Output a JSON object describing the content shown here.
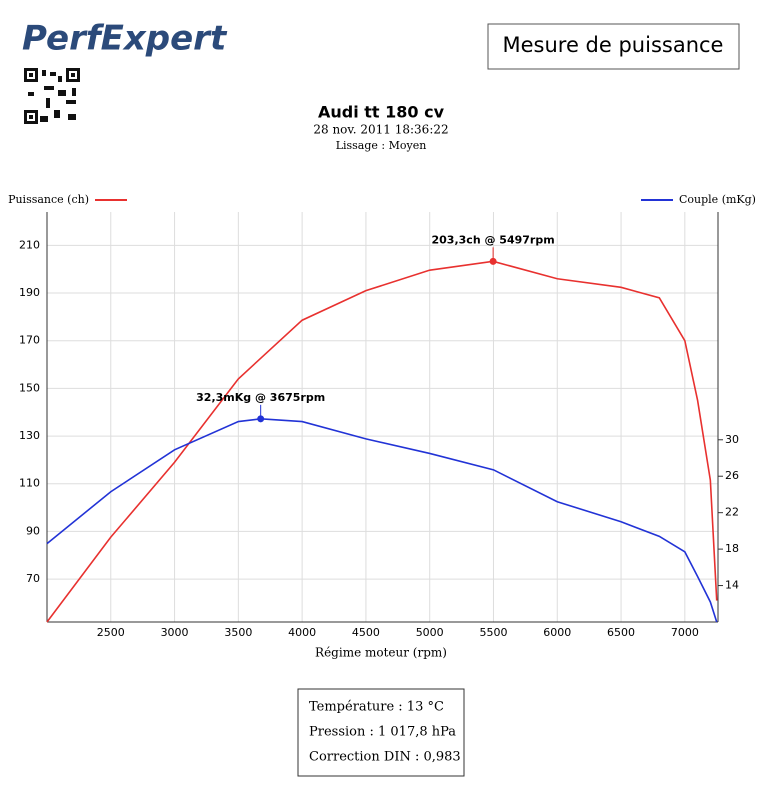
{
  "header": {
    "logo": "PerfExpert",
    "heading": "Mesure de puissance"
  },
  "chart_data": {
    "type": "line",
    "title": "Audi tt 180 cv",
    "subtitle": "28 nov. 2011 18:36:22",
    "smoothing": "Lissage : Moyen",
    "x_label": "Régime moteur (rpm)",
    "xlim": [
      2000,
      7260
    ],
    "xticks": [
      2500,
      3000,
      3500,
      4000,
      4500,
      5000,
      5500,
      6000,
      6500,
      7000
    ],
    "ylim": [
      52,
      224
    ],
    "yticks": [
      70,
      90,
      110,
      130,
      150,
      170,
      190,
      210
    ],
    "y2lim": [
      10,
      55
    ],
    "y2ticks": [
      14,
      18,
      22,
      26,
      30
    ],
    "grid": true,
    "series": [
      {
        "name": "Puissance (ch)",
        "color": "#e8312f",
        "axis": "y",
        "x": [
          2000,
          2500,
          3000,
          3500,
          4000,
          4500,
          5000,
          5497,
          6000,
          6500,
          6800,
          7000,
          7100,
          7200,
          7250
        ],
        "values": [
          52,
          87.6,
          119,
          154,
          178.6,
          191,
          199.6,
          203.3,
          196,
          192.4,
          188,
          170,
          145,
          111.5,
          61
        ]
      },
      {
        "name": "Couple (mKg)",
        "color": "#2233d6",
        "axis": "y2",
        "x": [
          2000,
          2500,
          3000,
          3500,
          3675,
          4000,
          4500,
          5000,
          5500,
          6000,
          6500,
          6800,
          7000,
          7100,
          7200,
          7250
        ],
        "values": [
          18.6,
          24.3,
          28.9,
          32,
          32.3,
          32,
          30.1,
          28.5,
          26.7,
          23.2,
          21,
          19.4,
          17.7,
          15,
          12.2,
          10
        ]
      }
    ],
    "annotations": [
      {
        "text": "203,3ch @ 5497rpm",
        "x": 5497,
        "y": 203.3,
        "axis": "y"
      },
      {
        "text": "32,3mKg @ 3675rpm",
        "x": 3675,
        "y": 32.3,
        "axis": "y2"
      }
    ]
  },
  "info": {
    "lines": [
      "Température : 13 °C",
      "Pression : 1 017,8 hPa",
      "Correction DIN : 0,983"
    ]
  }
}
